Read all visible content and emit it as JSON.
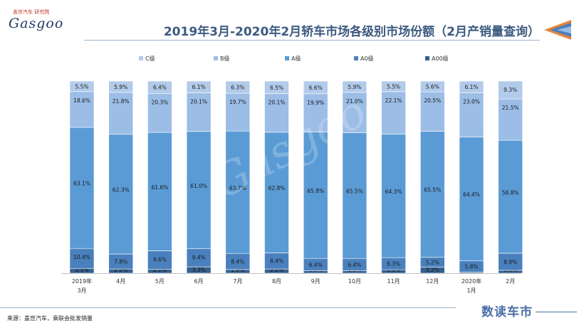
{
  "header": {
    "logo_tag": "盖世汽车 研究院",
    "logo_word": "Gasgoo",
    "title": "2019年3月-2020年2月轿车市场各级别市场份额（2月产销量查询）"
  },
  "footer": {
    "source": "来源：盖世汽车，乘联会批发销量",
    "brand": "数读车市"
  },
  "watermark": "Gasgoo",
  "colors": {
    "C级": "#b3cbea",
    "B级": "#9bbde6",
    "A级": "#5b9bd5",
    "A0级": "#4a80bd",
    "A00级": "#35608e",
    "title": "#3d5a80",
    "accent": "#e8833a"
  },
  "chart_data": {
    "type": "bar",
    "stacked": true,
    "categories": [
      [
        "2019年",
        "3月"
      ],
      [
        "4月"
      ],
      [
        "5月"
      ],
      [
        "6月"
      ],
      [
        "7月"
      ],
      [
        "8月"
      ],
      [
        "9月"
      ],
      [
        "10月"
      ],
      [
        "11月"
      ],
      [
        "12月"
      ],
      [
        "2020年",
        "1月"
      ],
      [
        "2月"
      ]
    ],
    "legend": [
      "C级",
      "B级",
      "A级",
      "A0级",
      "A00级"
    ],
    "legend_position": "top",
    "ylim": [
      0,
      100
    ],
    "grid": false,
    "series": [
      {
        "name": "A00级",
        "values": [
          2.5,
          2.2,
          2.1,
          3.3,
          1.9,
          2.2,
          1.3,
          1.3,
          1.8,
          3.2,
          0.6,
          1.5
        ]
      },
      {
        "name": "A0级",
        "values": [
          10.4,
          7.8,
          9.6,
          9.4,
          8.4,
          8.4,
          6.4,
          6.4,
          6.3,
          5.2,
          5.8,
          8.9
        ]
      },
      {
        "name": "A级",
        "values": [
          63.1,
          62.3,
          61.6,
          61.0,
          63.7,
          62.8,
          65.8,
          65.5,
          64.3,
          65.5,
          64.4,
          58.8
        ]
      },
      {
        "name": "B级",
        "values": [
          18.6,
          21.8,
          20.3,
          20.1,
          19.7,
          20.1,
          19.9,
          21.0,
          22.1,
          20.5,
          23.0,
          21.5
        ]
      },
      {
        "name": "C级",
        "values": [
          5.5,
          5.9,
          6.4,
          6.1,
          6.3,
          6.5,
          6.6,
          5.9,
          5.5,
          5.6,
          6.1,
          9.3
        ]
      }
    ]
  }
}
